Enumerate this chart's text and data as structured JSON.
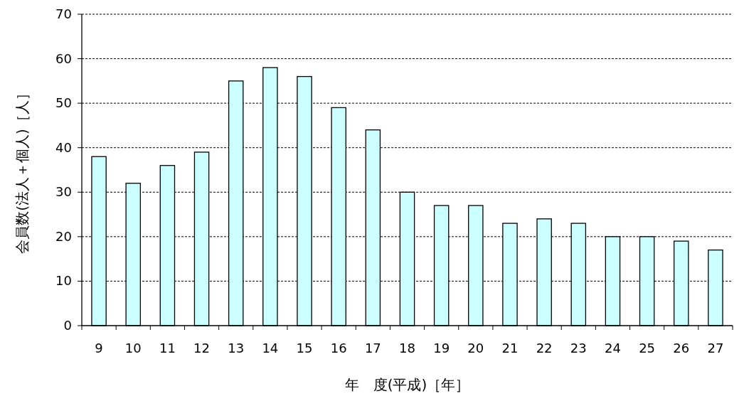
{
  "chart_data": {
    "type": "bar",
    "xlabel": "年　度(平成)［年］",
    "ylabel": "会員数(法人＋個人)［人］",
    "categories": [
      "9",
      "10",
      "11",
      "12",
      "13",
      "14",
      "15",
      "16",
      "17",
      "18",
      "19",
      "20",
      "21",
      "22",
      "23",
      "24",
      "25",
      "26",
      "27"
    ],
    "values": [
      38,
      32,
      36,
      39,
      55,
      58,
      56,
      49,
      44,
      30,
      27,
      27,
      23,
      24,
      23,
      20,
      20,
      19,
      17
    ],
    "color": "#ccffff",
    "ylim": [
      0,
      70
    ],
    "yticks": [
      0,
      10,
      20,
      30,
      40,
      50,
      60,
      70
    ],
    "grid": "y"
  }
}
